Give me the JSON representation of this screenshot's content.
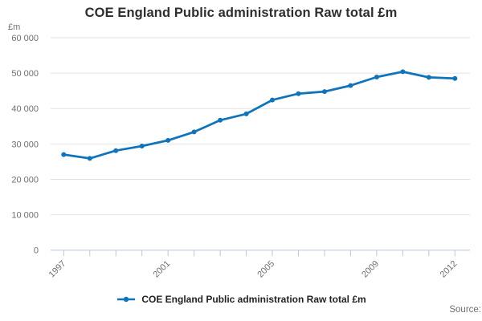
{
  "chart_data": {
    "type": "line",
    "title": "COE England Public administration Raw total £m",
    "unit_label": "£m",
    "xlabel": "",
    "ylabel": "£m",
    "x": [
      1997,
      1998,
      1999,
      2000,
      2001,
      2002,
      2003,
      2004,
      2005,
      2006,
      2007,
      2008,
      2009,
      2010,
      2011,
      2012
    ],
    "series": [
      {
        "name": "COE England Public administration Raw total £m",
        "color": "#1074bc",
        "values": [
          27000,
          25900,
          28100,
          29400,
          31000,
          33400,
          36700,
          38500,
          42400,
          44200,
          44800,
          46500,
          48900,
          50400,
          48800,
          48500
        ]
      }
    ],
    "ylim": [
      0,
      60000
    ],
    "ytick_step": 10000,
    "ytick_labels": [
      "0",
      "10 000",
      "20 000",
      "30 000",
      "40 000",
      "50 000",
      "60 000"
    ],
    "xtick_labels": [
      "1997",
      "2001",
      "2005",
      "2009",
      "2012"
    ],
    "grid": true,
    "legend_position": "bottom"
  },
  "source": {
    "label": "Source:"
  },
  "colors": {
    "line": "#1074bc",
    "gridline": "#e2e2e2",
    "axis": "#bcc6d8",
    "axis_text": "#6f6f6f",
    "title_text": "#2e2e2e",
    "legend_text": "#222222"
  }
}
